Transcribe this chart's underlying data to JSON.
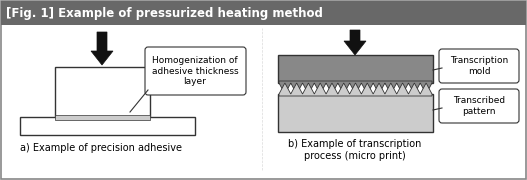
{
  "title": "[Fig. 1] Example of pressurized heating method",
  "title_bg": "#686868",
  "title_color": "#ffffff",
  "bg_color": "#ffffff",
  "border_color": "#888888",
  "label_a": "a) Example of precision adhesive",
  "label_b": "b) Example of transcription\nprocess (micro print)",
  "callout_a": "Homogenization of\nadhesive thickness\nlayer",
  "callout_b1": "Transcription\nmold",
  "callout_b2": "Transcribed\npattern",
  "arrow_color": "#111111",
  "white": "#ffffff",
  "dark_gray": "#888888",
  "light_gray": "#cccccc",
  "mid_gray": "#aaaaaa",
  "edge_color": "#333333"
}
